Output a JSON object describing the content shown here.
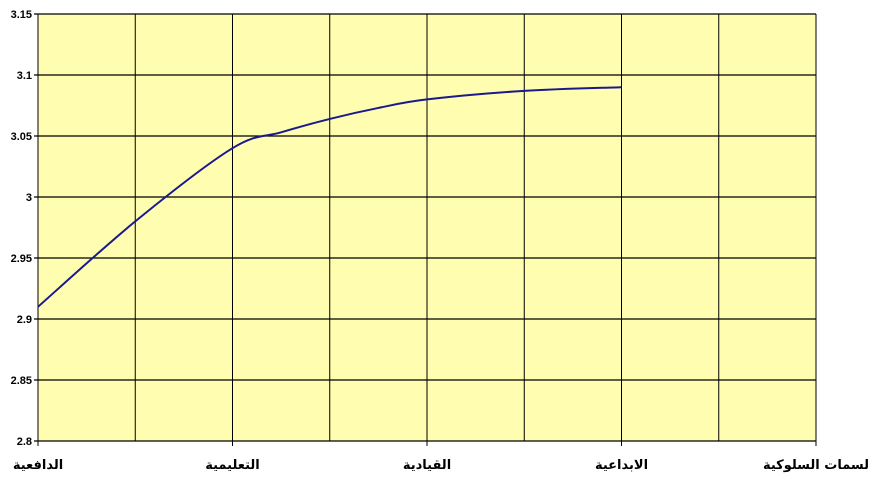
{
  "chart_data": {
    "type": "line",
    "title": "",
    "xlabel": "",
    "ylabel": "",
    "categories": [
      "الدافعية",
      "التعليمية",
      "القيادية",
      "الابداعية",
      "لسمات السلوكية"
    ],
    "series": [
      {
        "x": [
          0,
          0.5,
          1,
          1.25,
          1.5,
          1.75,
          2,
          2.5,
          3
        ],
        "values": [
          2.91,
          2.98,
          3.04,
          3.053,
          3.064,
          3.073,
          3.08,
          3.087,
          3.09
        ],
        "color": "#1a1a8c"
      }
    ],
    "ylim": [
      2.8,
      3.15
    ],
    "yticks": [
      "2.8",
      "2.85",
      "2.9",
      "2.95",
      "3",
      "3.05",
      "3.1",
      "3.15"
    ],
    "grid": true,
    "legend": "none",
    "colors": {
      "plot_background": "#fffdb0",
      "grid": "#000000",
      "line": "#1a1a8c"
    }
  }
}
